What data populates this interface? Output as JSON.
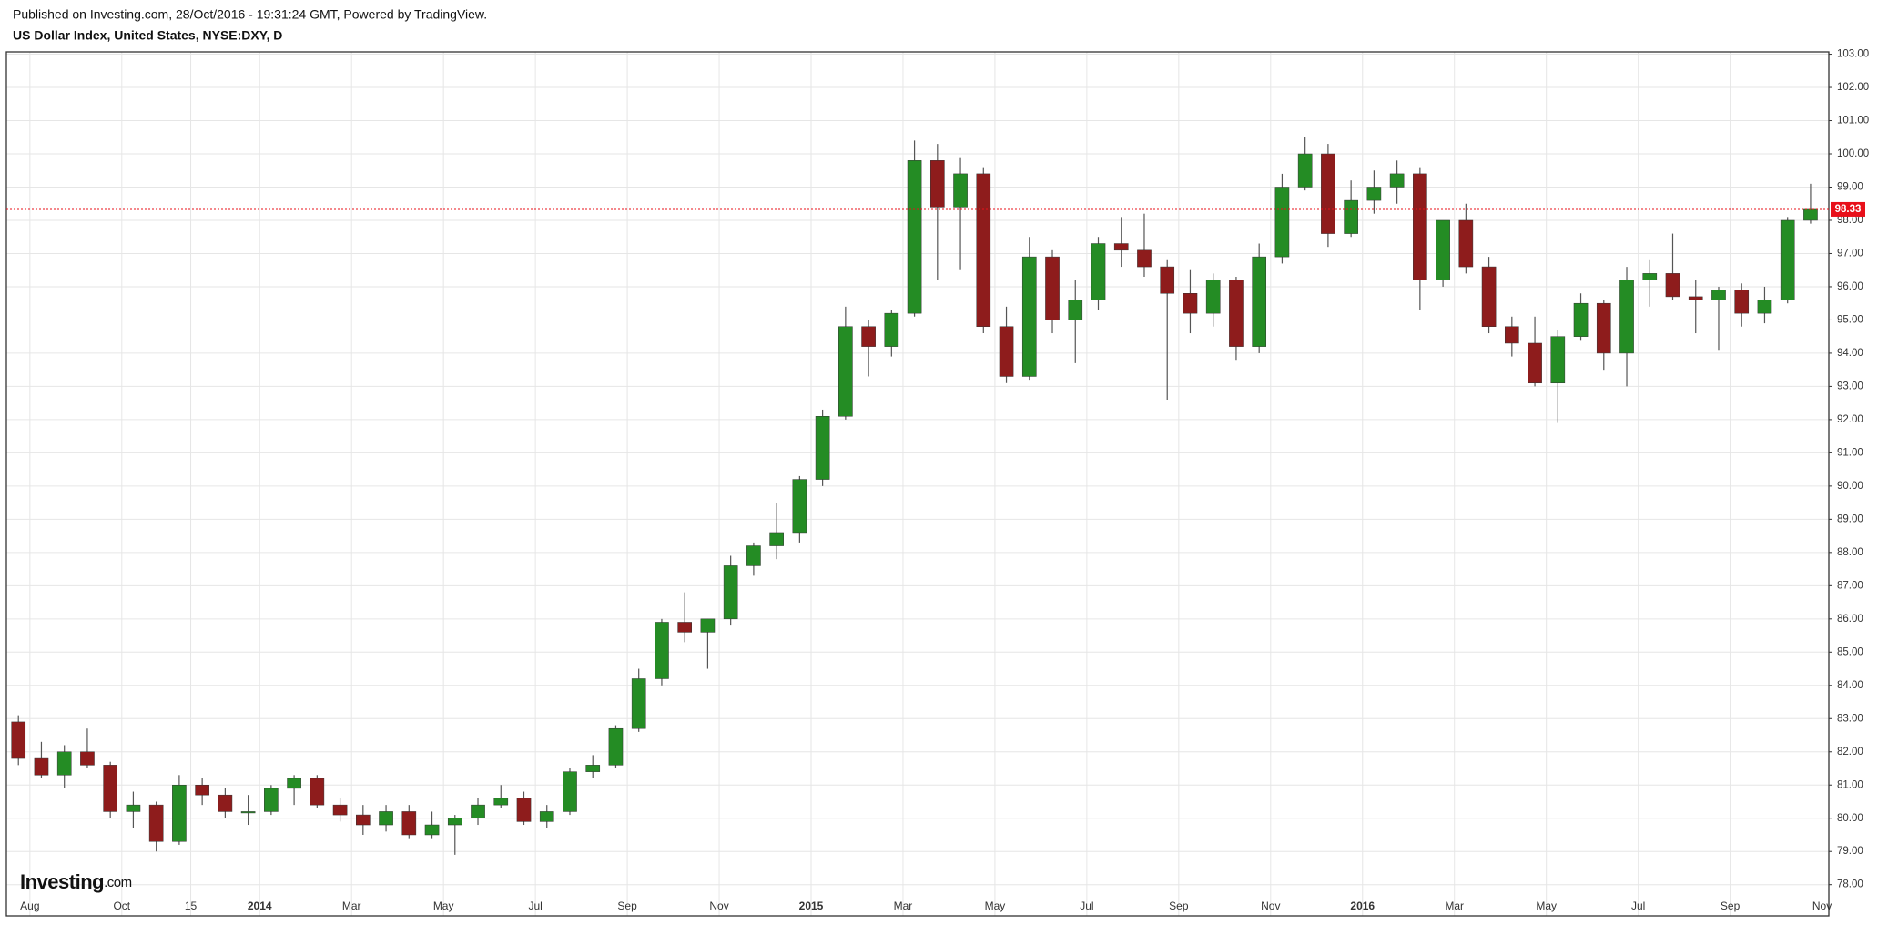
{
  "header": {
    "published": "Published on Investing.com, 28/Oct/2016 - 19:31:24 GMT, Powered by TradingView.",
    "symbol": "US Dollar Index, United States, NYSE:DXY, D"
  },
  "logo": {
    "name": "Investing",
    "suffix": ".com"
  },
  "chart_data": {
    "type": "candlestick",
    "categories": [
      null,
      "Aug",
      null,
      null,
      null,
      "Oct",
      null,
      null,
      "15",
      null,
      null,
      "2014",
      null,
      null,
      null,
      "Mar",
      null,
      null,
      null,
      "May",
      null,
      null,
      null,
      "Jul",
      null,
      null,
      null,
      "Sep",
      null,
      null,
      null,
      "Nov",
      null,
      null,
      null,
      "2015",
      null,
      null,
      null,
      "Mar",
      null,
      null,
      null,
      "May",
      null,
      null,
      null,
      "Jul",
      null,
      null,
      null,
      "Sep",
      null,
      null,
      null,
      "Nov",
      null,
      null,
      null,
      "2016",
      null,
      null,
      null,
      "Mar",
      null,
      null,
      null,
      "May",
      null,
      null,
      null,
      "Jul",
      null,
      null,
      null,
      "Sep",
      null,
      null,
      null,
      "Nov"
    ],
    "open": [
      82.9,
      81.8,
      81.3,
      82.0,
      81.6,
      80.2,
      80.4,
      79.3,
      81.0,
      80.7,
      80.2,
      80.2,
      80.9,
      81.2,
      80.4,
      80.1,
      79.8,
      80.2,
      79.5,
      79.8,
      80.0,
      80.4,
      80.6,
      79.9,
      80.2,
      81.4,
      81.6,
      82.7,
      84.2,
      85.9,
      85.6,
      86.0,
      87.6,
      88.2,
      88.6,
      90.2,
      92.1,
      94.8,
      94.2,
      95.2,
      99.8,
      98.4,
      99.4,
      94.8,
      93.3,
      96.9,
      95.0,
      95.6,
      97.3,
      97.1,
      96.6,
      95.8,
      95.2,
      96.2,
      94.2,
      96.9,
      99.0,
      100.0,
      97.6,
      98.6,
      99.0,
      99.4,
      96.2,
      98.0,
      96.6,
      94.8,
      94.3,
      93.1,
      94.5,
      95.5,
      94.0,
      96.2,
      96.4,
      95.7,
      95.6,
      95.9,
      95.2,
      95.6,
      98.0,
      null
    ],
    "high": [
      83.1,
      82.3,
      82.2,
      82.7,
      81.7,
      80.8,
      80.5,
      81.3,
      81.2,
      80.9,
      80.7,
      81.0,
      81.3,
      81.3,
      80.6,
      80.4,
      80.4,
      80.4,
      80.2,
      80.1,
      80.6,
      81.0,
      80.8,
      80.4,
      81.5,
      81.9,
      82.8,
      84.5,
      86.0,
      86.8,
      86.0,
      87.9,
      88.3,
      89.5,
      90.3,
      92.3,
      95.4,
      95.0,
      95.3,
      100.4,
      100.3,
      99.9,
      99.6,
      95.4,
      97.5,
      97.1,
      96.2,
      97.5,
      98.1,
      98.2,
      96.8,
      96.5,
      96.4,
      96.3,
      97.3,
      99.4,
      100.5,
      100.3,
      99.2,
      99.5,
      99.8,
      99.6,
      98.0,
      98.5,
      96.9,
      95.1,
      95.1,
      94.7,
      95.8,
      95.6,
      96.6,
      96.8,
      97.6,
      96.2,
      96.0,
      96.1,
      96.0,
      98.1,
      99.1,
      null
    ],
    "low": [
      81.6,
      81.2,
      80.9,
      81.5,
      80.0,
      79.7,
      79.0,
      79.2,
      80.4,
      80.0,
      79.8,
      80.1,
      80.4,
      80.3,
      79.9,
      79.5,
      79.6,
      79.4,
      79.4,
      78.9,
      79.8,
      80.3,
      79.8,
      79.7,
      80.1,
      81.2,
      81.5,
      82.6,
      84.0,
      85.3,
      84.5,
      85.8,
      87.3,
      87.8,
      88.3,
      90.0,
      92.0,
      93.3,
      93.9,
      95.1,
      96.2,
      96.5,
      94.6,
      93.1,
      93.2,
      94.6,
      93.7,
      95.3,
      96.6,
      96.3,
      92.6,
      94.6,
      94.8,
      93.8,
      94.0,
      96.7,
      98.9,
      97.2,
      97.5,
      98.2,
      98.5,
      95.3,
      96.0,
      96.4,
      94.6,
      93.9,
      93.0,
      91.9,
      94.4,
      93.5,
      93.0,
      95.4,
      95.6,
      94.6,
      94.1,
      94.8,
      94.9,
      95.5,
      97.9,
      null
    ],
    "close": [
      81.8,
      81.3,
      82.0,
      81.6,
      80.2,
      80.4,
      79.3,
      81.0,
      80.7,
      80.2,
      80.2,
      80.9,
      81.2,
      80.4,
      80.1,
      79.8,
      80.2,
      79.5,
      79.8,
      80.0,
      80.4,
      80.6,
      79.9,
      80.2,
      81.4,
      81.6,
      82.7,
      84.2,
      85.9,
      85.6,
      86.0,
      87.6,
      88.2,
      88.6,
      90.2,
      92.1,
      94.8,
      94.2,
      95.2,
      99.8,
      98.4,
      99.4,
      94.8,
      93.3,
      96.9,
      95.0,
      95.6,
      97.3,
      97.1,
      96.6,
      95.8,
      95.2,
      96.2,
      94.2,
      96.9,
      99.0,
      100.0,
      97.6,
      98.6,
      99.0,
      99.4,
      96.2,
      98.0,
      96.6,
      94.8,
      94.3,
      93.1,
      94.5,
      95.5,
      94.0,
      96.2,
      96.4,
      95.7,
      95.6,
      95.9,
      95.2,
      95.6,
      98.0,
      98.33,
      null
    ],
    "last_price": {
      "value": 98.33,
      "label": "98.33",
      "color": "#e8101a"
    },
    "up_color": "#248c24",
    "down_color": "#8e1c1c",
    "wick_color": "#555555",
    "ylim": [
      77.06,
      103.07
    ],
    "yticks": [
      {
        "value": 78,
        "label": "78.00"
      },
      {
        "value": 79,
        "label": "79.00"
      },
      {
        "value": 80,
        "label": "80.00"
      },
      {
        "value": 81,
        "label": "81.00"
      },
      {
        "value": 82,
        "label": "82.00"
      },
      {
        "value": 83,
        "label": "83.00"
      },
      {
        "value": 84,
        "label": "84.00"
      },
      {
        "value": 85,
        "label": "85.00"
      },
      {
        "value": 86,
        "label": "86.00"
      },
      {
        "value": 87,
        "label": "87.00"
      },
      {
        "value": 88,
        "label": "88.00"
      },
      {
        "value": 89,
        "label": "89.00"
      },
      {
        "value": 90,
        "label": "90.00"
      },
      {
        "value": 91,
        "label": "91.00"
      },
      {
        "value": 92,
        "label": "92.00"
      },
      {
        "value": 93,
        "label": "93.00"
      },
      {
        "value": 94,
        "label": "94.00"
      },
      {
        "value": 95,
        "label": "95.00"
      },
      {
        "value": 96,
        "label": "96.00"
      },
      {
        "value": 97,
        "label": "97.00"
      },
      {
        "value": 98,
        "label": "98.00"
      },
      {
        "value": 99,
        "label": "99.00"
      },
      {
        "value": 100,
        "label": "100.00"
      },
      {
        "value": 101,
        "label": "101.00"
      },
      {
        "value": 102,
        "label": "102.00"
      },
      {
        "value": 103,
        "label": "103.00"
      }
    ],
    "grid": true
  }
}
